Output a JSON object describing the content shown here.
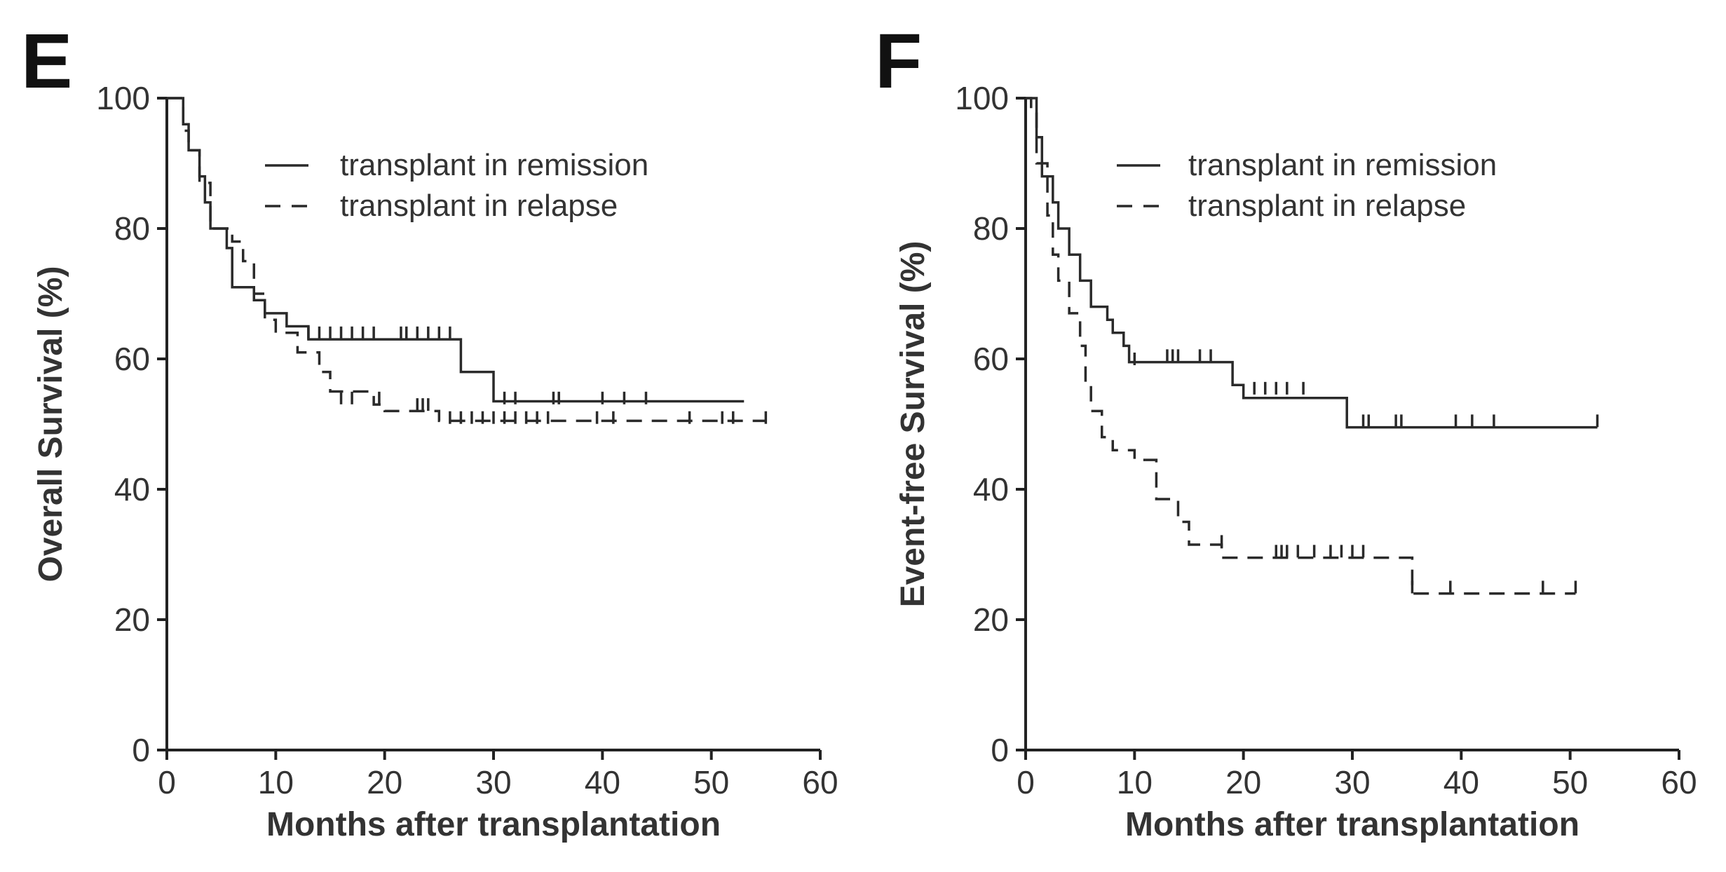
{
  "chart_data": [
    {
      "type": "line",
      "panel": "E",
      "xlabel": "Months after transplantation",
      "ylabel": "Overall Survival (%)",
      "xlim": [
        0,
        60
      ],
      "ylim": [
        0,
        100
      ],
      "xticks": [
        0,
        10,
        20,
        30,
        40,
        50,
        60
      ],
      "yticks": [
        0,
        20,
        40,
        60,
        80,
        100
      ],
      "grid": false,
      "legend_position": "top-right",
      "series": [
        {
          "name": "transplant in remission",
          "style": "solid",
          "steps": [
            [
              0,
              100
            ],
            [
              1,
              100
            ],
            [
              1.5,
              96
            ],
            [
              2,
              92
            ],
            [
              3,
              88
            ],
            [
              3.5,
              84
            ],
            [
              4,
              80
            ],
            [
              5.5,
              77
            ],
            [
              6,
              71
            ],
            [
              8,
              69
            ],
            [
              9,
              67
            ],
            [
              11,
              65
            ],
            [
              13,
              63
            ],
            [
              27,
              63
            ],
            [
              27,
              58
            ],
            [
              30,
              58
            ],
            [
              30,
              53.5
            ],
            [
              53,
              53.5
            ]
          ],
          "censored": [
            [
              13,
              64
            ],
            [
              14,
              64
            ],
            [
              15,
              64
            ],
            [
              16,
              64
            ],
            [
              17,
              64
            ],
            [
              18,
              64
            ],
            [
              19,
              64
            ],
            [
              21.5,
              64
            ],
            [
              22,
              64
            ],
            [
              23,
              64
            ],
            [
              24,
              64
            ],
            [
              25,
              64
            ],
            [
              26,
              64
            ],
            [
              31,
              54
            ],
            [
              32,
              54
            ],
            [
              35.5,
              54
            ],
            [
              36,
              54
            ],
            [
              40,
              54
            ],
            [
              42,
              54
            ],
            [
              44,
              54
            ]
          ]
        },
        {
          "name": "transplant in relapse",
          "style": "dashed",
          "steps": [
            [
              0,
              100
            ],
            [
              1,
              100
            ],
            [
              1.5,
              95
            ],
            [
              2,
              92
            ],
            [
              3,
              87
            ],
            [
              4,
              80
            ],
            [
              6,
              78
            ],
            [
              7,
              75
            ],
            [
              8,
              70
            ],
            [
              9,
              66
            ],
            [
              10,
              64
            ],
            [
              12,
              61
            ],
            [
              14,
              58
            ],
            [
              15,
              55
            ],
            [
              19,
              53
            ],
            [
              20,
              52
            ],
            [
              25,
              52
            ],
            [
              25,
              50.5
            ],
            [
              55,
              50.5
            ]
          ],
          "censored": [
            [
              16,
              54
            ],
            [
              17,
              54
            ],
            [
              19.5,
              54
            ],
            [
              23,
              53
            ],
            [
              23.5,
              53
            ],
            [
              24,
              53
            ],
            [
              26,
              51
            ],
            [
              27,
              51
            ],
            [
              28,
              51
            ],
            [
              29,
              51
            ],
            [
              30,
              51
            ],
            [
              31,
              51
            ],
            [
              32,
              51
            ],
            [
              33,
              51
            ],
            [
              34,
              51
            ],
            [
              35,
              51
            ],
            [
              39.5,
              51
            ],
            [
              41,
              51
            ],
            [
              48,
              51
            ],
            [
              51,
              51
            ],
            [
              52,
              51
            ],
            [
              55,
              51
            ]
          ]
        }
      ]
    },
    {
      "type": "line",
      "panel": "F",
      "xlabel": "Months after transplantation",
      "ylabel": "Event-free Survival (%)",
      "xlim": [
        0,
        60
      ],
      "ylim": [
        0,
        100
      ],
      "xticks": [
        0,
        10,
        20,
        30,
        40,
        50,
        60
      ],
      "yticks": [
        0,
        20,
        40,
        60,
        80,
        100
      ],
      "grid": false,
      "legend_position": "top-right",
      "series": [
        {
          "name": "transplant in remission",
          "style": "solid",
          "steps": [
            [
              0,
              100
            ],
            [
              0.5,
              100
            ],
            [
              1,
              94
            ],
            [
              1.5,
              88
            ],
            [
              2.5,
              84
            ],
            [
              3,
              80
            ],
            [
              4,
              76
            ],
            [
              5,
              72
            ],
            [
              6,
              68
            ],
            [
              7.5,
              66
            ],
            [
              8,
              64
            ],
            [
              9,
              62
            ],
            [
              9.5,
              59.5
            ],
            [
              18.5,
              59.5
            ],
            [
              19,
              56
            ],
            [
              20,
              54
            ],
            [
              29.5,
              54
            ],
            [
              29.5,
              49.5
            ],
            [
              52.5,
              49.5
            ]
          ],
          "censored": [
            [
              10,
              60
            ],
            [
              13,
              60.5
            ],
            [
              13.5,
              60.5
            ],
            [
              14,
              60.5
            ],
            [
              16,
              60.5
            ],
            [
              17,
              60.5
            ],
            [
              21,
              55.5
            ],
            [
              22,
              55.5
            ],
            [
              23,
              55.5
            ],
            [
              24,
              55.5
            ],
            [
              25.5,
              55.5
            ],
            [
              31,
              50.5
            ],
            [
              31.5,
              50.5
            ],
            [
              34,
              50.5
            ],
            [
              34.5,
              50.5
            ],
            [
              39.5,
              50.5
            ],
            [
              41,
              50.5
            ],
            [
              43,
              50.5
            ],
            [
              52.5,
              50.5
            ]
          ]
        },
        {
          "name": "transplant in relapse",
          "style": "dashed",
          "steps": [
            [
              0,
              100
            ],
            [
              0.5,
              98
            ],
            [
              1,
              90
            ],
            [
              2,
              82
            ],
            [
              2.5,
              76
            ],
            [
              3,
              72
            ],
            [
              4,
              67
            ],
            [
              5,
              62
            ],
            [
              5.5,
              56
            ],
            [
              6,
              52
            ],
            [
              7,
              48
            ],
            [
              8,
              46
            ],
            [
              10,
              44.5
            ],
            [
              12,
              38.5
            ],
            [
              14,
              35
            ],
            [
              15,
              31.5
            ],
            [
              18,
              29.5
            ],
            [
              35,
              29.5
            ],
            [
              35.5,
              24
            ],
            [
              50.5,
              24
            ]
          ],
          "censored": [
            [
              18,
              32
            ],
            [
              23,
              30.5
            ],
            [
              23.5,
              30.5
            ],
            [
              24,
              30.5
            ],
            [
              25,
              30.5
            ],
            [
              26.5,
              30.5
            ],
            [
              28,
              30.5
            ],
            [
              29,
              30.5
            ],
            [
              30,
              30.5
            ],
            [
              31,
              30.5
            ],
            [
              35.5,
              25
            ],
            [
              39,
              25
            ],
            [
              47.5,
              25
            ],
            [
              50.5,
              25
            ]
          ]
        }
      ]
    }
  ]
}
